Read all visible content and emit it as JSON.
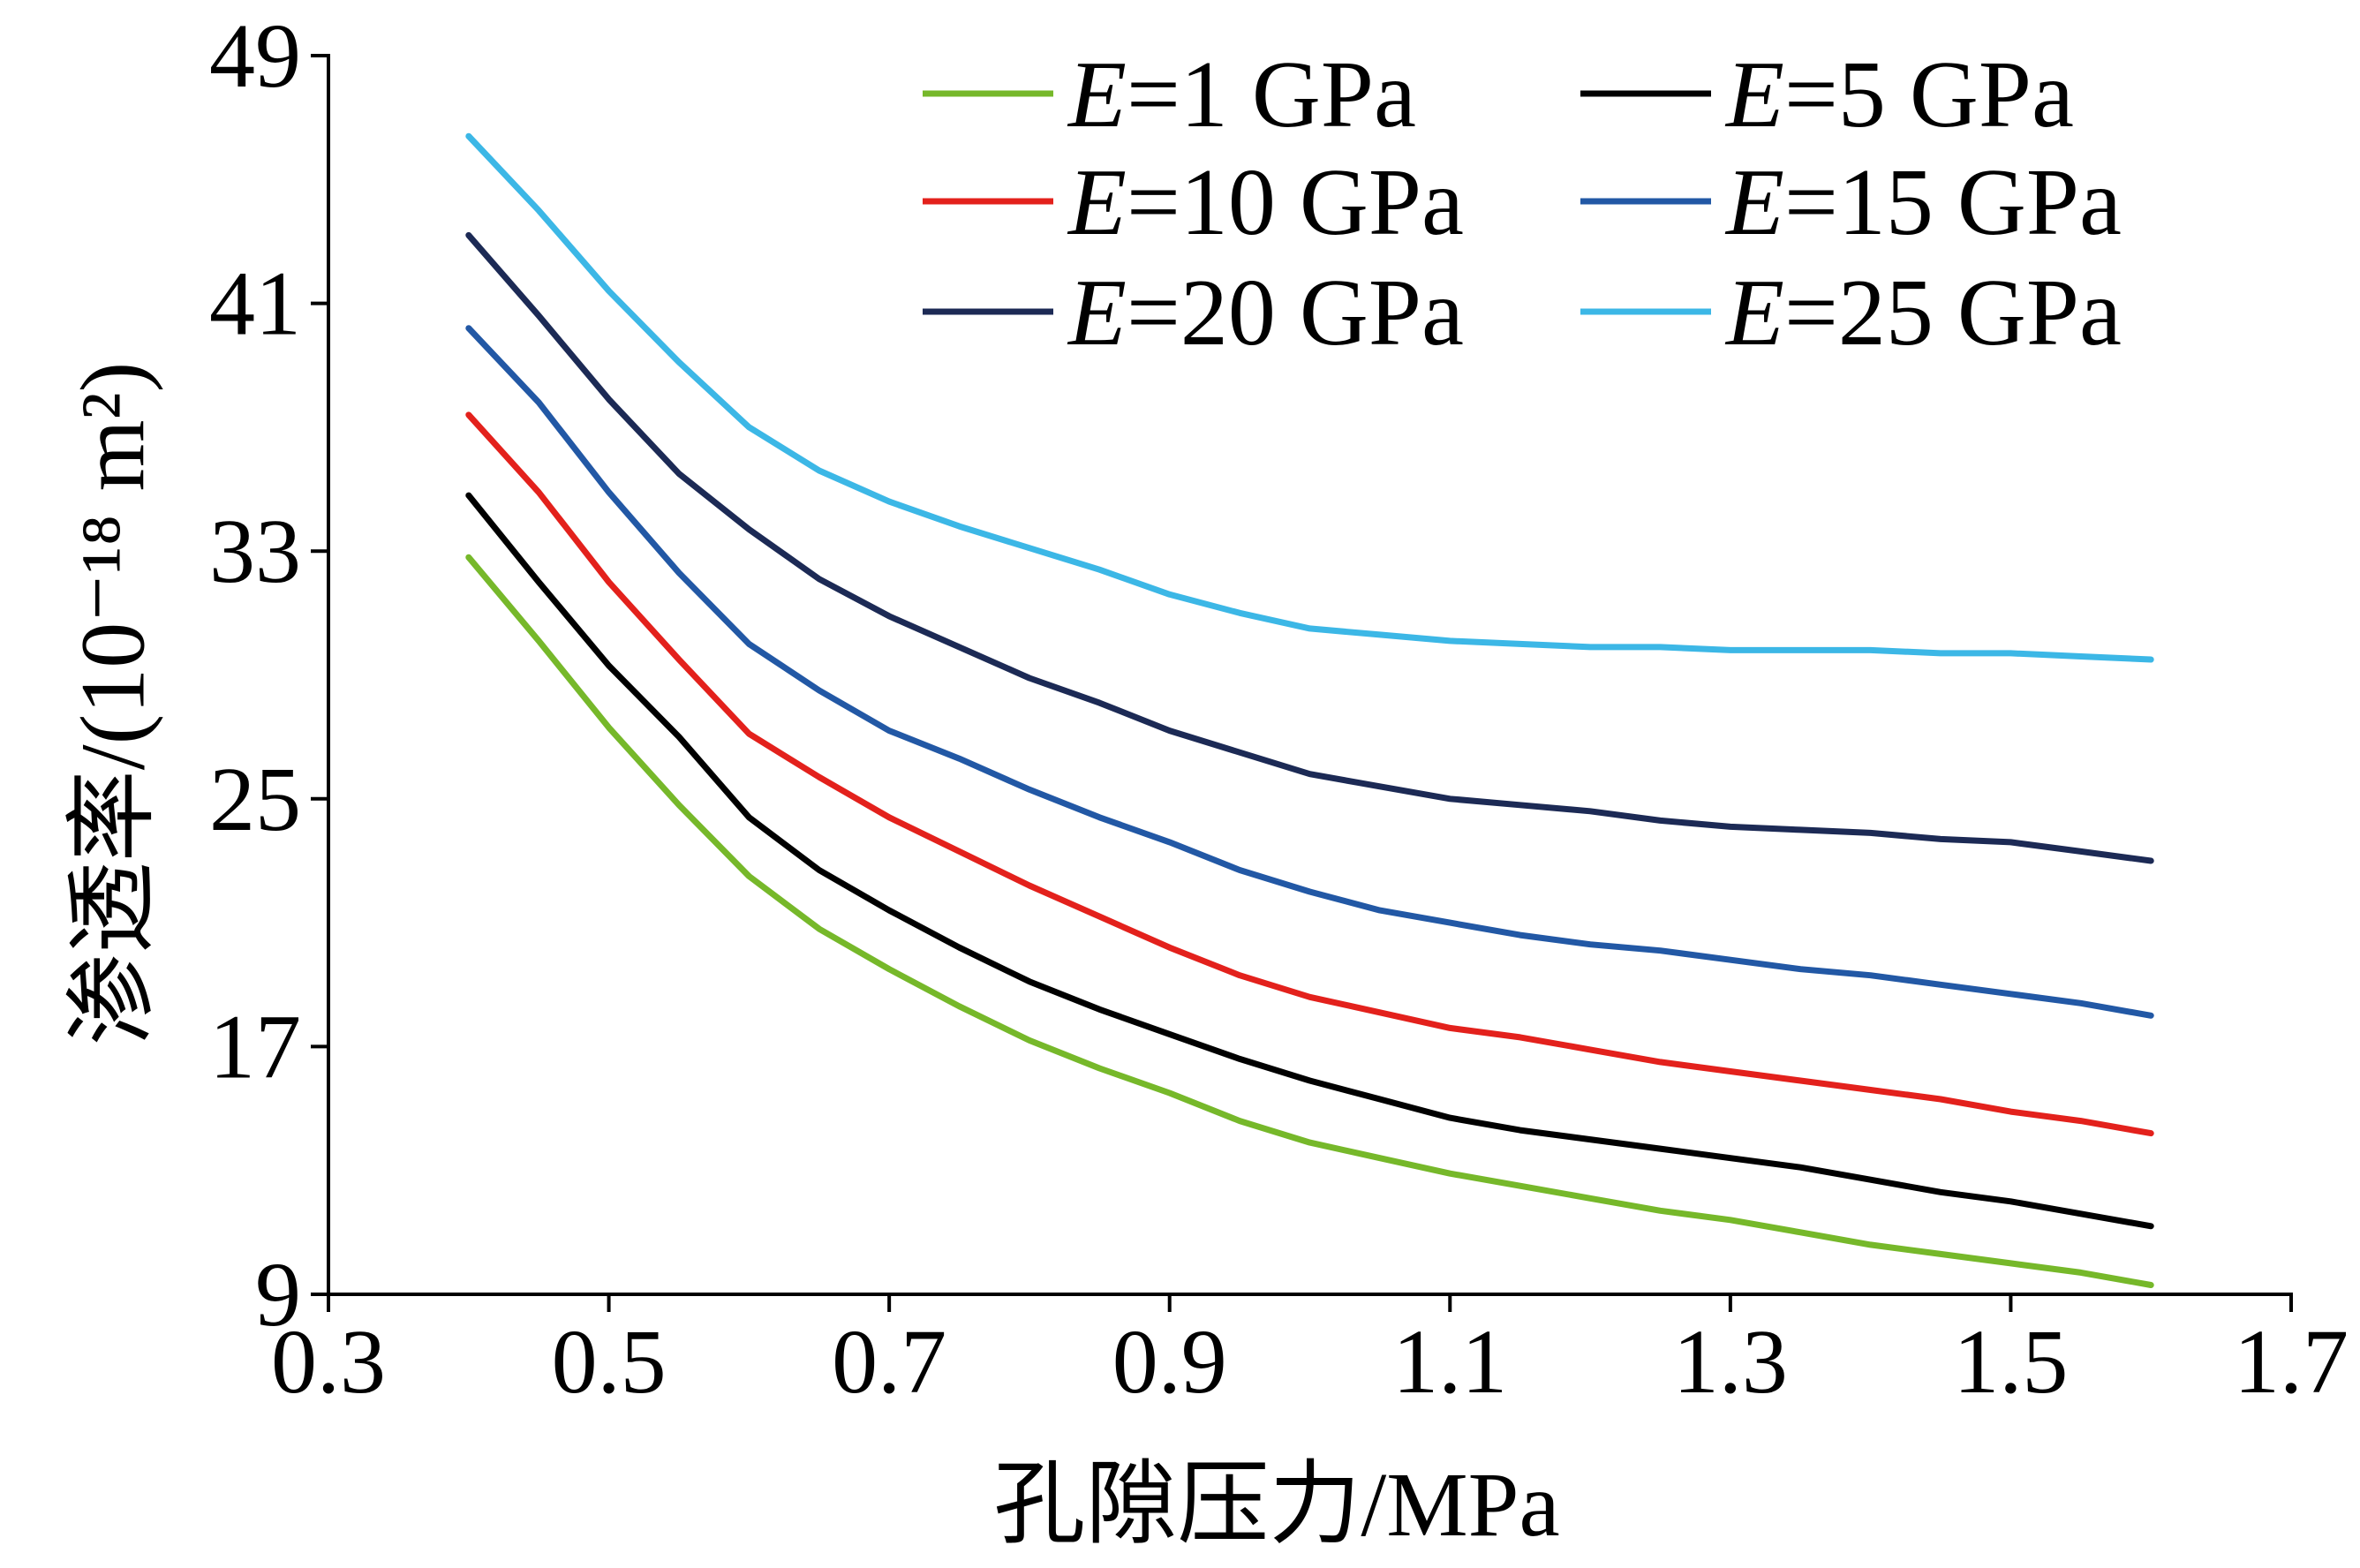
{
  "chart_data": {
    "type": "line",
    "xlabel": "孔隙压力/MPa",
    "ylabel": "渗透率/(10⁻¹⁸ m²)",
    "xlim": [
      0.3,
      1.7
    ],
    "ylim": [
      9,
      49
    ],
    "xticks": [
      "0.3",
      "0.5",
      "0.7",
      "0.9",
      "1.1",
      "1.3",
      "1.5",
      "1.7"
    ],
    "yticks": [
      "9",
      "17",
      "25",
      "33",
      "41",
      "49"
    ],
    "grid": false,
    "legend": "top-right",
    "x": [
      0.4,
      0.45,
      0.5,
      0.55,
      0.6,
      0.65,
      0.7,
      0.75,
      0.8,
      0.85,
      0.9,
      0.95,
      1.0,
      1.05,
      1.1,
      1.15,
      1.2,
      1.25,
      1.3,
      1.35,
      1.4,
      1.45,
      1.5,
      1.55,
      1.6
    ],
    "series": [
      {
        "name": "E=1 GPa",
        "color": "#76b82a",
        "values": [
          32.8,
          30.1,
          27.3,
          24.8,
          22.5,
          20.8,
          19.5,
          18.3,
          17.2,
          16.3,
          15.5,
          14.6,
          13.9,
          13.4,
          12.9,
          12.5,
          12.1,
          11.7,
          11.4,
          11.0,
          10.6,
          10.3,
          10.0,
          9.7,
          9.3
        ]
      },
      {
        "name": "E=5 GPa",
        "color": "#000000",
        "values": [
          34.8,
          32.0,
          29.3,
          27.0,
          24.4,
          22.7,
          21.4,
          20.2,
          19.1,
          18.2,
          17.4,
          16.6,
          15.9,
          15.3,
          14.7,
          14.3,
          14.0,
          13.7,
          13.4,
          13.1,
          12.7,
          12.3,
          12.0,
          11.6,
          11.2
        ]
      },
      {
        "name": "E=10 GPa",
        "color": "#e3211c",
        "values": [
          37.4,
          34.9,
          32.0,
          29.5,
          27.1,
          25.7,
          24.4,
          23.3,
          22.2,
          21.2,
          20.2,
          19.3,
          18.6,
          18.1,
          17.6,
          17.3,
          16.9,
          16.5,
          16.2,
          15.9,
          15.6,
          15.3,
          14.9,
          14.6,
          14.2
        ]
      },
      {
        "name": "E=15 GPa",
        "color": "#2258a5",
        "values": [
          40.2,
          37.8,
          34.9,
          32.3,
          30.0,
          28.5,
          27.2,
          26.3,
          25.3,
          24.4,
          23.6,
          22.7,
          22.0,
          21.4,
          21.0,
          20.6,
          20.3,
          20.1,
          19.8,
          19.5,
          19.3,
          19.0,
          18.7,
          18.4,
          18.0
        ]
      },
      {
        "name": "E=20 GPa",
        "color": "#1c2a55",
        "values": [
          43.2,
          40.6,
          37.9,
          35.5,
          33.7,
          32.1,
          30.9,
          29.9,
          28.9,
          28.1,
          27.2,
          26.5,
          25.8,
          25.4,
          25.0,
          24.8,
          24.6,
          24.3,
          24.1,
          24.0,
          23.9,
          23.7,
          23.6,
          23.3,
          23.0
        ]
      },
      {
        "name": "E=25 GPa",
        "color": "#3cb7e6",
        "values": [
          46.4,
          44.0,
          41.4,
          39.1,
          37.0,
          35.6,
          34.6,
          33.8,
          33.1,
          32.4,
          31.6,
          31.0,
          30.5,
          30.3,
          30.1,
          30.0,
          29.9,
          29.9,
          29.8,
          29.8,
          29.8,
          29.7,
          29.7,
          29.6,
          29.5
        ]
      }
    ]
  }
}
